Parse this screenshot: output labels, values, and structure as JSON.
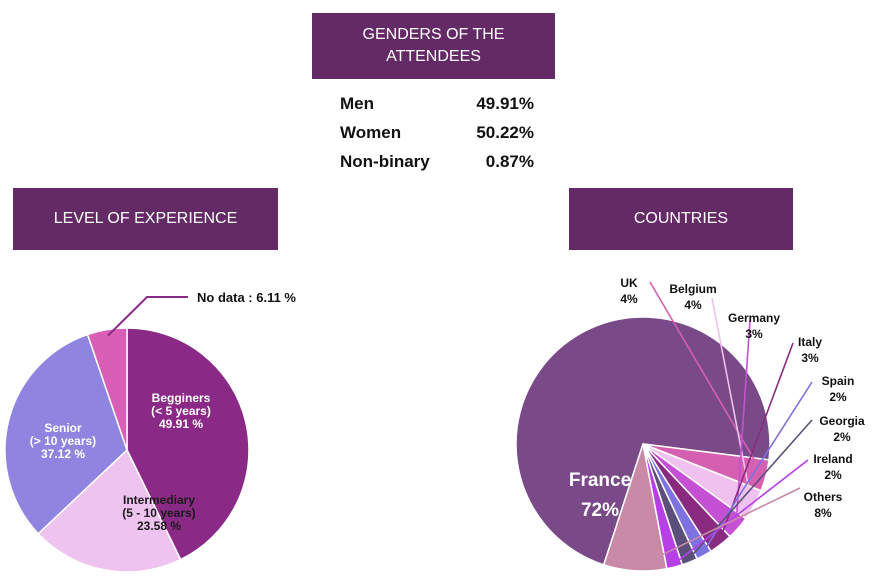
{
  "genders": {
    "title": "GENDERS OF THE ATTENDEES",
    "rows": [
      {
        "label": "Men",
        "value": "49.91%"
      },
      {
        "label": "Women",
        "value": "50.22%"
      },
      {
        "label": "Non-binary",
        "value": "0.87%"
      }
    ]
  },
  "experience": {
    "title": "LEVEL OF EXPERIENCE"
  },
  "countries": {
    "title": "COUNTRIES"
  },
  "chart_data": [
    {
      "type": "pie",
      "title": "LEVEL OF EXPERIENCE",
      "slices": [
        {
          "label": "Begginers",
          "sublabel": "(< 5 years)",
          "value": 49.91,
          "value_text": "49.91 %",
          "color": "#8a2a86"
        },
        {
          "label": "Intermediary",
          "sublabel": "(5 - 10  years)",
          "value": 23.58,
          "value_text": "23.58 %",
          "color": "#eec3ef"
        },
        {
          "label": "Senior",
          "sublabel": "(> 10 years)",
          "value": 37.12,
          "value_text": "37.12 %",
          "color": "#8f84e0"
        },
        {
          "label": "No data",
          "value": 6.11,
          "value_text": "No data : 6.11 %",
          "color": "#d85fb5"
        }
      ]
    },
    {
      "type": "pie",
      "title": "COUNTRIES",
      "slices": [
        {
          "label": "France",
          "value": 72,
          "value_text": "72%",
          "color": "#7a4a88"
        },
        {
          "label": "UK",
          "value": 4,
          "value_text": "4%",
          "color": "#d55fb0"
        },
        {
          "label": "Belgium",
          "value": 4,
          "value_text": "4%",
          "color": "#efc1ee"
        },
        {
          "label": "Germany",
          "value": 3,
          "value_text": "3%",
          "color": "#c650d4"
        },
        {
          "label": "Italy",
          "value": 3,
          "value_text": "3%",
          "color": "#8a2a80"
        },
        {
          "label": "Spain",
          "value": 2,
          "value_text": "2%",
          "color": "#7d72e0"
        },
        {
          "label": "Georgia",
          "value": 2,
          "value_text": "2%",
          "color": "#5c4f7a"
        },
        {
          "label": "Ireland",
          "value": 2,
          "value_text": "2%",
          "color": "#b640e6"
        },
        {
          "label": "Others",
          "value": 8,
          "value_text": "8%",
          "color": "#c98aa8"
        }
      ]
    }
  ]
}
